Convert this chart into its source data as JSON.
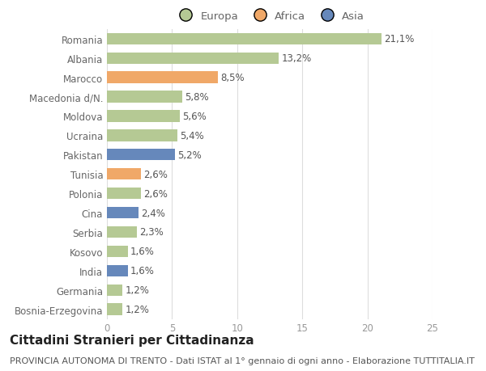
{
  "categories": [
    "Bosnia-Erzegovina",
    "Germania",
    "India",
    "Kosovo",
    "Serbia",
    "Cina",
    "Polonia",
    "Tunisia",
    "Pakistan",
    "Ucraina",
    "Moldova",
    "Macedonia d/N.",
    "Marocco",
    "Albania",
    "Romania"
  ],
  "values": [
    1.2,
    1.2,
    1.6,
    1.6,
    2.3,
    2.4,
    2.6,
    2.6,
    5.2,
    5.4,
    5.6,
    5.8,
    8.5,
    13.2,
    21.1
  ],
  "labels": [
    "1,2%",
    "1,2%",
    "1,6%",
    "1,6%",
    "2,3%",
    "2,4%",
    "2,6%",
    "2,6%",
    "5,2%",
    "5,4%",
    "5,6%",
    "5,8%",
    "8,5%",
    "13,2%",
    "21,1%"
  ],
  "continents": [
    "Europa",
    "Europa",
    "Asia",
    "Europa",
    "Europa",
    "Asia",
    "Europa",
    "Africa",
    "Asia",
    "Europa",
    "Europa",
    "Europa",
    "Africa",
    "Europa",
    "Europa"
  ],
  "colors": {
    "Europa": "#b5c994",
    "Africa": "#f0a868",
    "Asia": "#6688bb"
  },
  "xlim": [
    0,
    25
  ],
  "xticks": [
    0,
    5,
    10,
    15,
    20,
    25
  ],
  "title": "Cittadini Stranieri per Cittadinanza",
  "subtitle": "PROVINCIA AUTONOMA DI TRENTO - Dati ISTAT al 1° gennaio di ogni anno - Elaborazione TUTTITALIA.IT",
  "background_color": "#ffffff",
  "grid_color": "#dddddd",
  "bar_height": 0.6,
  "title_fontsize": 11,
  "subtitle_fontsize": 8,
  "label_fontsize": 8.5,
  "tick_fontsize": 8.5,
  "legend_fontsize": 9.5,
  "ytick_color": "#666666",
  "xtick_color": "#999999",
  "label_color": "#555555",
  "title_color": "#222222",
  "subtitle_color": "#555555"
}
